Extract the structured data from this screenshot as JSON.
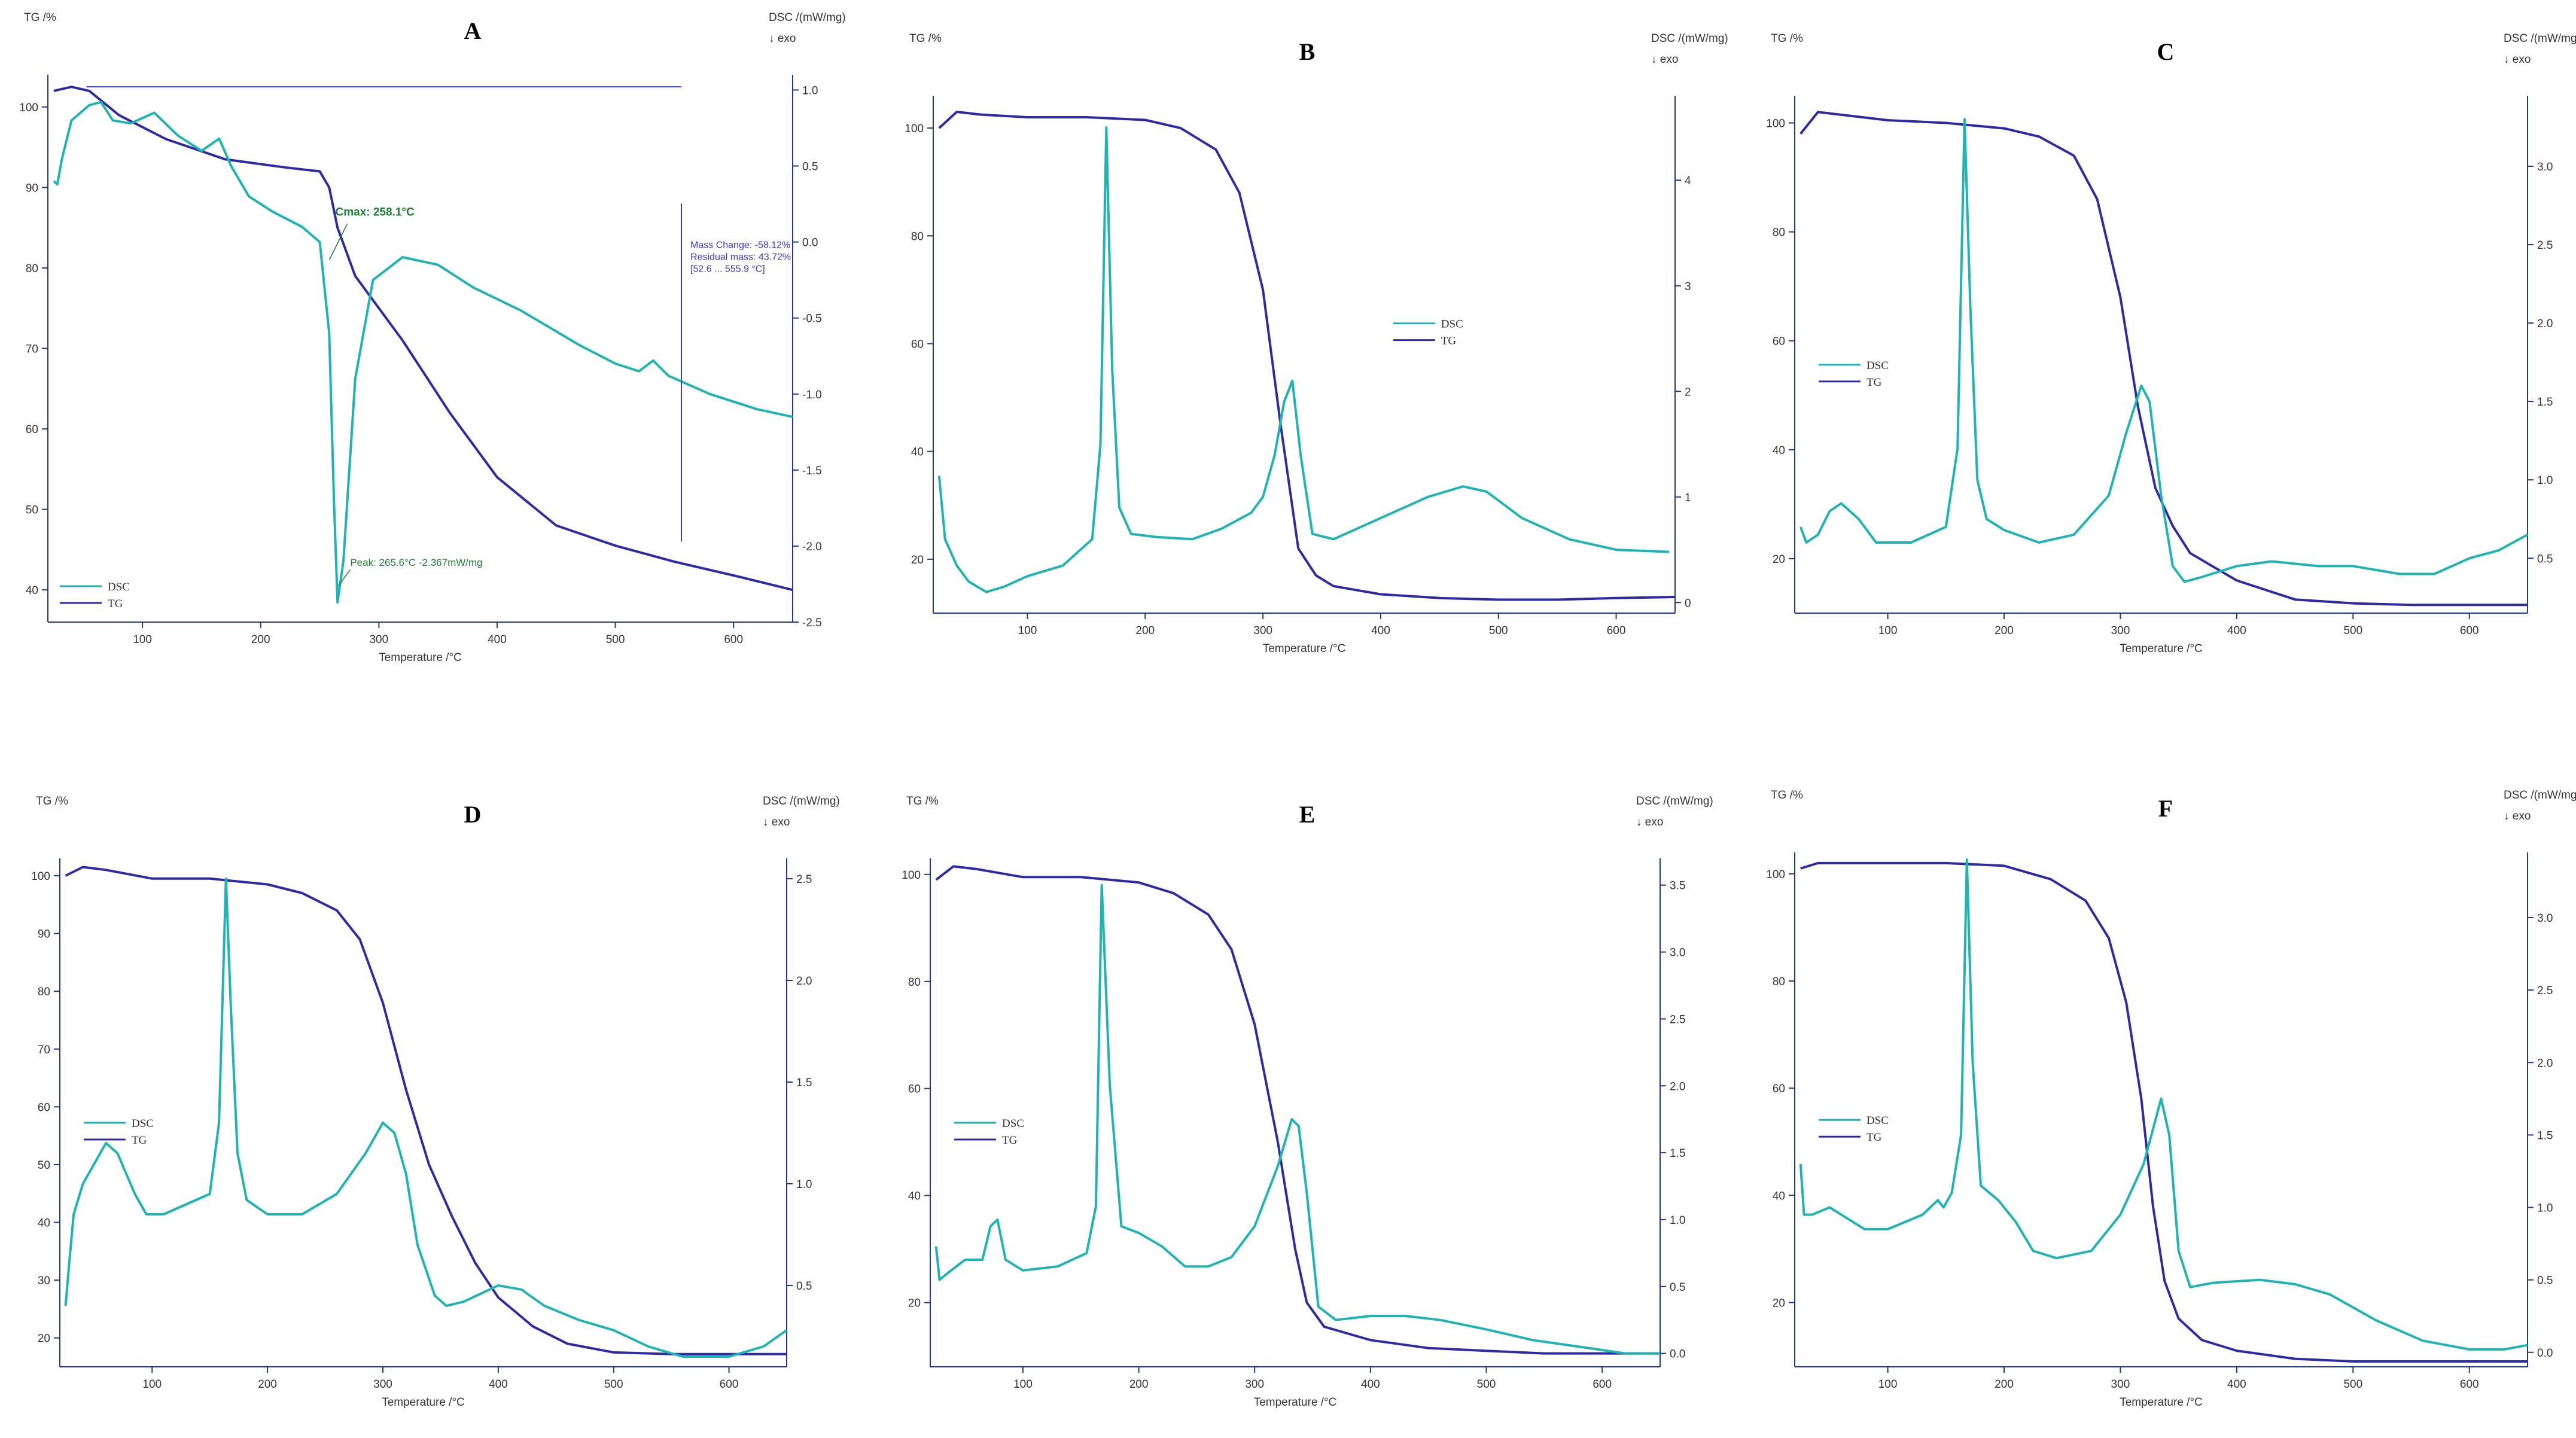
{
  "colors": {
    "tg": "#2e2aa6",
    "dsc": "#1fb3b3",
    "axis": "#1f3a8a",
    "annot_green": "#1e7e34",
    "annot_blue": "#3a3ad0"
  },
  "labels": {
    "tg_axis": "TG /%",
    "dsc_axis": "DSC /(mW/mg)",
    "exo": "↓ exo",
    "temperature": "Temperature /°C"
  },
  "chart_data": [
    {
      "id": "A",
      "type": "line",
      "title": "A",
      "xlabel": "Temperature /°C",
      "ylabel_left": "TG /%",
      "ylabel_right": "DSC /(mW/mg)",
      "xlim": [
        20,
        650
      ],
      "ylim_left": [
        36,
        104
      ],
      "ylim_right": [
        -2.5,
        1.1
      ],
      "xticks": [
        100,
        200,
        300,
        400,
        500,
        600
      ],
      "yticks_left": [
        40,
        50,
        60,
        70,
        80,
        90,
        100
      ],
      "yticks_right": [
        1.0,
        0.5,
        0.0,
        -0.5,
        -1.0,
        -1.5,
        -2.0,
        -2.5
      ],
      "yticks_right_labels": [
        "1.0",
        "0.5",
        "0.0",
        "-0.5",
        "-1.0",
        "-1.5",
        "-2.0",
        "-2.5"
      ],
      "legend": [
        "DSC",
        "TG"
      ],
      "legend_position": "bottom-left",
      "series": [
        {
          "name": "TG",
          "axis": "left",
          "x": [
            25,
            40,
            55,
            80,
            120,
            170,
            220,
            250,
            258,
            265,
            280,
            320,
            360,
            400,
            450,
            500,
            550,
            600,
            650
          ],
          "y": [
            102,
            102.5,
            102,
            99,
            96,
            93.5,
            92.5,
            92,
            90,
            85,
            79,
            71,
            62,
            54,
            48,
            45.5,
            43.5,
            41.8,
            40
          ]
        },
        {
          "name": "DSC",
          "axis": "right",
          "x": [
            25,
            28,
            32,
            40,
            55,
            65,
            75,
            90,
            110,
            130,
            150,
            165,
            175,
            190,
            210,
            235,
            250,
            258,
            262,
            265,
            270,
            280,
            295,
            320,
            350,
            380,
            420,
            470,
            500,
            520,
            532,
            545,
            580,
            620,
            650
          ],
          "y": [
            0.4,
            0.38,
            0.55,
            0.8,
            0.9,
            0.92,
            0.8,
            0.78,
            0.85,
            0.7,
            0.6,
            0.68,
            0.5,
            0.3,
            0.2,
            0.1,
            0.0,
            -0.6,
            -1.7,
            -2.37,
            -2.1,
            -0.9,
            -0.25,
            -0.1,
            -0.15,
            -0.3,
            -0.45,
            -0.68,
            -0.8,
            -0.85,
            -0.78,
            -0.88,
            -1.0,
            -1.1,
            -1.15
          ]
        }
      ],
      "annotations": {
        "cmax": "Cmax: 258.1°C",
        "peak": "Peak: 265.6°C  -2.367mW/mg",
        "mass_change": "Mass Change:  -58.12%",
        "residual_mass": "Residual mass:  43.72%",
        "range": "[52.6 ... 555.9 °C]"
      }
    },
    {
      "id": "B",
      "type": "line",
      "title": "B",
      "xlabel": "Temperature /°C",
      "ylabel_left": "TG /%",
      "ylabel_right": "DSC /(mW/mg)",
      "xlim": [
        20,
        650
      ],
      "ylim_left": [
        10,
        106
      ],
      "ylim_right": [
        -0.1,
        4.8
      ],
      "xticks": [
        100,
        200,
        300,
        400,
        500,
        600
      ],
      "yticks_left": [
        20,
        40,
        60,
        80,
        100
      ],
      "yticks_right": [
        0,
        1,
        2,
        3,
        4
      ],
      "yticks_right_labels": [
        "0",
        "1",
        "2",
        "3",
        "4"
      ],
      "legend": [
        "DSC",
        "TG"
      ],
      "legend_position": "center-right",
      "series": [
        {
          "name": "TG",
          "axis": "left",
          "x": [
            25,
            40,
            60,
            100,
            150,
            200,
            230,
            260,
            280,
            300,
            315,
            330,
            345,
            360,
            400,
            450,
            500,
            550,
            600,
            650
          ],
          "y": [
            100,
            103,
            102.5,
            102,
            102,
            101.5,
            100,
            96,
            88,
            70,
            45,
            22,
            17,
            15,
            13.5,
            12.8,
            12.5,
            12.5,
            12.8,
            13
          ]
        },
        {
          "name": "DSC",
          "axis": "right",
          "x": [
            25,
            30,
            40,
            50,
            65,
            80,
            100,
            130,
            155,
            162,
            167,
            172,
            178,
            188,
            210,
            240,
            265,
            290,
            300,
            310,
            318,
            325,
            332,
            342,
            360,
            400,
            440,
            470,
            490,
            520,
            560,
            600,
            645
          ],
          "y": [
            1.2,
            0.6,
            0.35,
            0.2,
            0.1,
            0.15,
            0.25,
            0.35,
            0.6,
            1.5,
            4.5,
            2.2,
            0.9,
            0.65,
            0.62,
            0.6,
            0.7,
            0.85,
            1.0,
            1.4,
            1.9,
            2.1,
            1.4,
            0.65,
            0.6,
            0.8,
            1.0,
            1.1,
            1.05,
            0.8,
            0.6,
            0.5,
            0.48
          ]
        }
      ]
    },
    {
      "id": "C",
      "type": "line",
      "title": "C",
      "xlabel": "Temperature /°C",
      "ylabel_left": "TG /%",
      "ylabel_right": "DSC /(mW/mg)",
      "xlim": [
        20,
        650
      ],
      "ylim_left": [
        10,
        105
      ],
      "ylim_right": [
        0.15,
        3.45
      ],
      "xticks": [
        100,
        200,
        300,
        400,
        500,
        600
      ],
      "yticks_left": [
        20,
        40,
        60,
        80,
        100
      ],
      "yticks_right": [
        0.5,
        1.0,
        1.5,
        2.0,
        2.5,
        3.0
      ],
      "yticks_right_labels": [
        "0.5",
        "1.0",
        "1.5",
        "2.0",
        "2.5",
        "3.0"
      ],
      "legend": [
        "DSC",
        "TG"
      ],
      "legend_position": "center-left",
      "series": [
        {
          "name": "TG",
          "axis": "left",
          "x": [
            25,
            40,
            60,
            100,
            150,
            200,
            230,
            260,
            280,
            300,
            315,
            330,
            345,
            360,
            400,
            450,
            500,
            550,
            600,
            650
          ],
          "y": [
            98,
            102,
            101.5,
            100.5,
            100,
            99,
            97.5,
            94,
            86,
            68,
            48,
            33,
            26,
            21,
            16,
            12.5,
            11.8,
            11.5,
            11.5,
            11.5
          ]
        },
        {
          "name": "DSC",
          "axis": "right",
          "x": [
            25,
            30,
            40,
            50,
            60,
            75,
            90,
            120,
            150,
            160,
            166,
            171,
            177,
            185,
            200,
            230,
            260,
            290,
            305,
            318,
            325,
            335,
            345,
            355,
            370,
            400,
            430,
            470,
            500,
            540,
            570,
            600,
            625,
            650
          ],
          "y": [
            0.7,
            0.6,
            0.65,
            0.8,
            0.85,
            0.75,
            0.6,
            0.6,
            0.7,
            1.2,
            3.3,
            2.1,
            1.0,
            0.75,
            0.68,
            0.6,
            0.65,
            0.9,
            1.3,
            1.6,
            1.5,
            0.9,
            0.45,
            0.35,
            0.38,
            0.45,
            0.48,
            0.45,
            0.45,
            0.4,
            0.4,
            0.5,
            0.55,
            0.65
          ]
        }
      ]
    },
    {
      "id": "D",
      "type": "line",
      "title": "D",
      "xlabel": "Temperature /°C",
      "ylabel_left": "TG /%",
      "ylabel_right": "DSC /(mW/mg)",
      "xlim": [
        20,
        650
      ],
      "ylim_left": [
        15,
        103
      ],
      "ylim_right": [
        0.1,
        2.6
      ],
      "xticks": [
        100,
        200,
        300,
        400,
        500,
        600
      ],
      "yticks_left": [
        20,
        30,
        40,
        50,
        60,
        70,
        80,
        90,
        100
      ],
      "yticks_right": [
        0.5,
        1.0,
        1.5,
        2.0,
        2.5
      ],
      "yticks_right_labels": [
        "0.5",
        "1.0",
        "1.5",
        "2.0",
        "2.5"
      ],
      "legend": [
        "DSC",
        "TG"
      ],
      "legend_position": "center-left",
      "series": [
        {
          "name": "TG",
          "axis": "left",
          "x": [
            25,
            40,
            60,
            100,
            150,
            200,
            230,
            260,
            280,
            300,
            320,
            340,
            360,
            380,
            400,
            430,
            460,
            500,
            550,
            600,
            650
          ],
          "y": [
            100,
            101.5,
            101,
            99.5,
            99.5,
            98.5,
            97,
            94,
            89,
            78,
            63,
            50,
            41,
            33,
            27,
            22,
            19,
            17.5,
            17.2,
            17.2,
            17.2
          ]
        },
        {
          "name": "DSC",
          "axis": "right",
          "x": [
            25,
            28,
            32,
            40,
            50,
            60,
            70,
            85,
            95,
            110,
            130,
            150,
            158,
            164,
            168,
            174,
            182,
            200,
            230,
            260,
            285,
            300,
            310,
            320,
            330,
            345,
            355,
            370,
            400,
            420,
            440,
            470,
            500,
            530,
            560,
            600,
            630,
            650
          ],
          "y": [
            0.4,
            0.6,
            0.85,
            1.0,
            1.1,
            1.2,
            1.15,
            0.95,
            0.85,
            0.85,
            0.9,
            0.95,
            1.3,
            2.5,
            1.9,
            1.15,
            0.92,
            0.85,
            0.85,
            0.95,
            1.15,
            1.3,
            1.25,
            1.05,
            0.7,
            0.45,
            0.4,
            0.42,
            0.5,
            0.48,
            0.4,
            0.33,
            0.28,
            0.2,
            0.15,
            0.15,
            0.2,
            0.28
          ]
        }
      ]
    },
    {
      "id": "E",
      "type": "line",
      "title": "E",
      "xlabel": "Temperature /°C",
      "ylabel_left": "TG /%",
      "ylabel_right": "DSC /(mW/mg)",
      "xlim": [
        20,
        650
      ],
      "ylim_left": [
        8,
        103
      ],
      "ylim_right": [
        -0.1,
        3.7
      ],
      "xticks": [
        100,
        200,
        300,
        400,
        500,
        600
      ],
      "yticks_left": [
        20,
        40,
        60,
        80,
        100
      ],
      "yticks_right": [
        0.0,
        0.5,
        1.0,
        1.5,
        2.0,
        2.5,
        3.0,
        3.5
      ],
      "yticks_right_labels": [
        "0.0",
        "0.5",
        "1.0",
        "1.5",
        "2.0",
        "2.5",
        "3.0",
        "3.5"
      ],
      "legend": [
        "DSC",
        "TG"
      ],
      "legend_position": "center-left",
      "series": [
        {
          "name": "TG",
          "axis": "left",
          "x": [
            25,
            40,
            60,
            100,
            150,
            200,
            230,
            260,
            280,
            300,
            320,
            335,
            345,
            360,
            400,
            450,
            500,
            550,
            600,
            650
          ],
          "y": [
            99,
            101.5,
            101,
            99.5,
            99.5,
            98.5,
            96.5,
            92.5,
            86,
            72,
            50,
            30,
            20,
            15.5,
            13,
            11.5,
            11,
            10.5,
            10.5,
            10.5
          ]
        },
        {
          "name": "DSC",
          "axis": "right",
          "x": [
            25,
            28,
            35,
            50,
            65,
            72,
            78,
            85,
            100,
            130,
            155,
            163,
            168,
            175,
            185,
            200,
            220,
            240,
            260,
            280,
            300,
            320,
            332,
            338,
            345,
            355,
            370,
            400,
            430,
            460,
            500,
            540,
            580,
            620,
            650
          ],
          "y": [
            0.8,
            0.55,
            0.6,
            0.7,
            0.7,
            0.95,
            1.0,
            0.7,
            0.62,
            0.65,
            0.75,
            1.1,
            3.5,
            2.0,
            0.95,
            0.9,
            0.8,
            0.65,
            0.65,
            0.72,
            0.95,
            1.4,
            1.75,
            1.7,
            1.2,
            0.35,
            0.25,
            0.28,
            0.28,
            0.25,
            0.18,
            0.1,
            0.05,
            0.0,
            0.0
          ]
        }
      ]
    },
    {
      "id": "F",
      "type": "line",
      "title": "F",
      "xlabel": "Temperature /°C",
      "ylabel_left": "TG /%",
      "ylabel_right": "DSC /(mW/mg)",
      "xlim": [
        20,
        650
      ],
      "ylim_left": [
        8,
        104
      ],
      "ylim_right": [
        -0.1,
        3.45
      ],
      "xticks": [
        100,
        200,
        300,
        400,
        500,
        600
      ],
      "yticks_left": [
        20,
        40,
        60,
        80,
        100
      ],
      "yticks_right": [
        0.0,
        0.5,
        1.0,
        1.5,
        2.0,
        2.5,
        3.0
      ],
      "yticks_right_labels": [
        "0.0",
        "0.5",
        "1.0",
        "1.5",
        "2.0",
        "2.5",
        "3.0"
      ],
      "legend": [
        "DSC",
        "TG"
      ],
      "legend_position": "center-left",
      "series": [
        {
          "name": "TG",
          "axis": "left",
          "x": [
            25,
            40,
            60,
            100,
            150,
            200,
            240,
            270,
            290,
            305,
            318,
            328,
            338,
            350,
            370,
            400,
            450,
            500,
            550,
            600,
            650
          ],
          "y": [
            101,
            102,
            102,
            102,
            102,
            101.5,
            99,
            95,
            88,
            76,
            58,
            38,
            24,
            17,
            13,
            11,
            9.5,
            9,
            9,
            9,
            9
          ]
        },
        {
          "name": "DSC",
          "axis": "right",
          "x": [
            25,
            28,
            35,
            50,
            60,
            80,
            100,
            130,
            143,
            148,
            155,
            163,
            168,
            173,
            180,
            195,
            210,
            225,
            245,
            275,
            300,
            320,
            335,
            342,
            350,
            360,
            380,
            420,
            450,
            480,
            520,
            560,
            600,
            630,
            650
          ],
          "y": [
            1.3,
            0.95,
            0.95,
            1.0,
            0.95,
            0.85,
            0.85,
            0.95,
            1.05,
            1.0,
            1.1,
            1.5,
            3.4,
            2.0,
            1.15,
            1.05,
            0.9,
            0.7,
            0.65,
            0.7,
            0.95,
            1.3,
            1.75,
            1.5,
            0.7,
            0.45,
            0.48,
            0.5,
            0.47,
            0.4,
            0.22,
            0.08,
            0.02,
            0.02,
            0.05
          ]
        }
      ]
    }
  ]
}
